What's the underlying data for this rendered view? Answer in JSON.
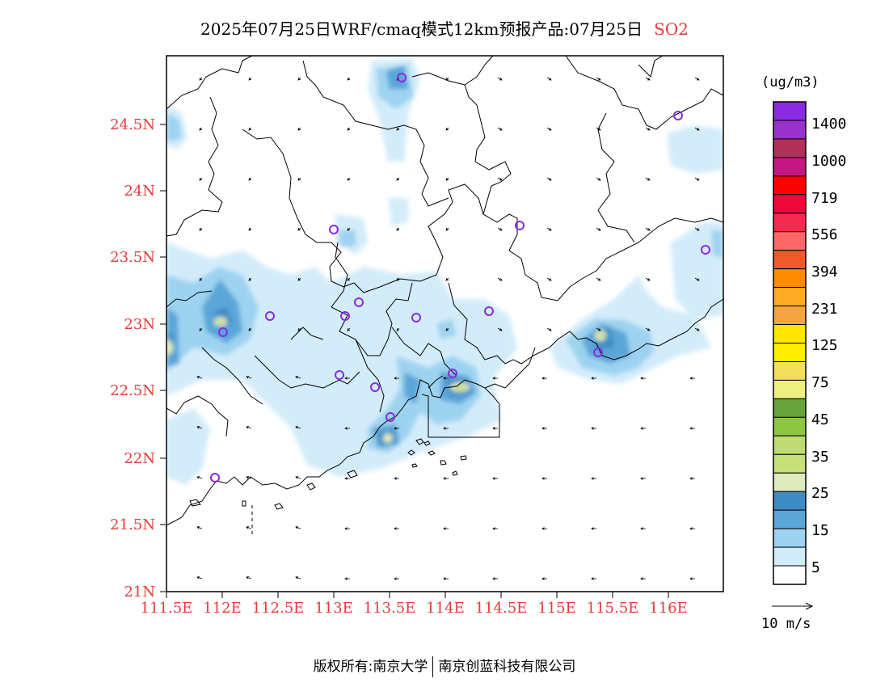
{
  "title": {
    "main": "2025年07月25日WRF/cmaq模式12km预报产品:07月25日",
    "species": "SO2"
  },
  "map": {
    "lat_labels": [
      "24.5N",
      "24N",
      "23.5N",
      "23N",
      "22.5N",
      "22N",
      "21.5N",
      "21N"
    ],
    "lon_labels": [
      "111.5E",
      "112E",
      "112.5E",
      "113E",
      "113.5E",
      "114E",
      "114.5E",
      "115E",
      "115.5E",
      "116E"
    ],
    "colors": {
      "axis_labels": "#e53b3b",
      "station_markers": "#8a2be2"
    }
  },
  "colorbar": {
    "unit": "(ug/m3)",
    "levels": [
      "1400",
      "1000",
      "719",
      "556",
      "394",
      "231",
      "125",
      "75",
      "45",
      "35",
      "25",
      "15",
      "5"
    ],
    "colors": [
      "#8a2be2",
      "#9932cc",
      "#b0305a",
      "#c71585",
      "#ff0000",
      "#f0083d",
      "#f52c4f",
      "#ff6666",
      "#f05a2a",
      "#ff8c00",
      "#ffaa22",
      "#f5a540",
      "#ffe600",
      "#ffee00",
      "#f2e05a",
      "#eef080",
      "#66a33a",
      "#8ec63f",
      "#bedb74",
      "#c8e07a",
      "#dfeabe",
      "#3f8cc4",
      "#5aa6d9",
      "#9dd3f0",
      "#d3ecfa",
      "#ffffff"
    ]
  },
  "wind_reference": {
    "label": "10 m/s"
  },
  "footer": {
    "left": "版权所有:南京大学",
    "right": "南京创蓝科技有限公司"
  }
}
